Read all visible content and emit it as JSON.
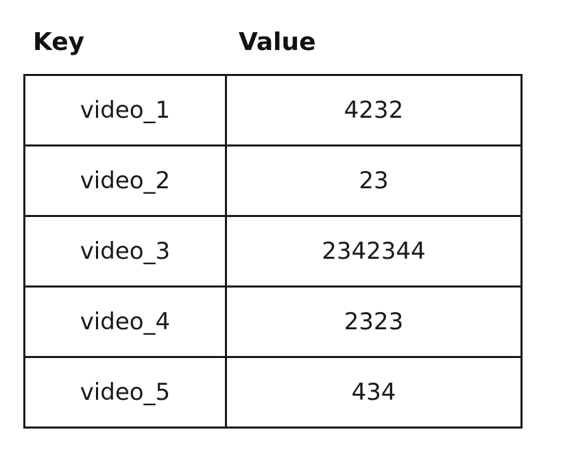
{
  "headers": {
    "key": "Key",
    "value": "Value"
  },
  "rows": [
    {
      "key": "video_1",
      "value": "4232"
    },
    {
      "key": "video_2",
      "value": "23"
    },
    {
      "key": "video_3",
      "value": "2342344"
    },
    {
      "key": "video_4",
      "value": "2323"
    },
    {
      "key": "video_5",
      "value": "434"
    }
  ]
}
